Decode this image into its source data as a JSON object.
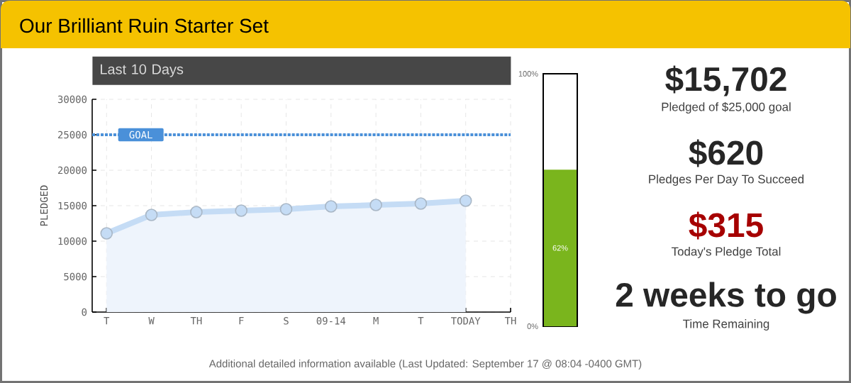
{
  "chart_data": [
    {
      "type": "area",
      "title": "Last 10 Days",
      "ylabel": "PLEDGED",
      "categories": [
        "T",
        "W",
        "TH",
        "F",
        "S",
        "09-14",
        "M",
        "T",
        "TODAY",
        "TH"
      ],
      "series": [
        {
          "color": "#c5dcf5",
          "values": [
            11100,
            13700,
            14100,
            14300,
            14500,
            14900,
            15100,
            15300,
            15700,
            null
          ]
        }
      ],
      "ylim": [
        0,
        30000
      ],
      "yticks": [
        0,
        5000,
        10000,
        15000,
        20000,
        25000,
        30000
      ],
      "grid": true,
      "marker": "circle",
      "ref_lines": [
        {
          "axis": "y",
          "value": 25000,
          "label": "GOAL",
          "color": "#4a90d9",
          "line_style": "dotted"
        }
      ]
    },
    {
      "type": "bar",
      "categories": [
        null
      ],
      "values": [
        62
      ],
      "color": "#7ab51d",
      "ylim": [
        0,
        100
      ],
      "yticks": [
        {
          "value": 0,
          "label": "0%"
        },
        {
          "value": 100,
          "label": "100%"
        }
      ],
      "value_labels": [
        "62%"
      ],
      "tick_labels": "y"
    },
    {
      "type": "other",
      "title": "Our Brilliant Ruin Starter Set",
      "annotations": [
        "$15,702",
        "Pledged of $25,000 goal",
        "$620",
        "Pledges Per Day To Succeed",
        "$315",
        "Today's Pledge Total",
        "2 weeks to go",
        "Time Remaining",
        "Additional detailed information available (Last Updated: September 17 @ 08:04 -0400 GMT)"
      ]
    }
  ]
}
